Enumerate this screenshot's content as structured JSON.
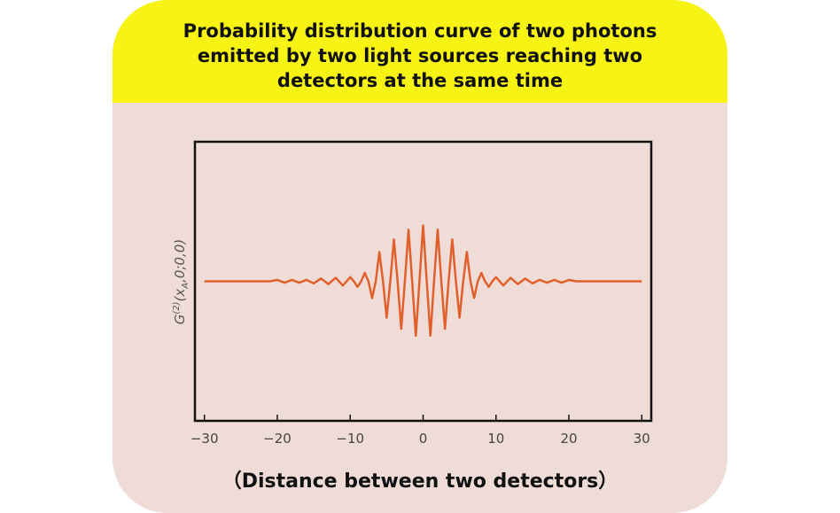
{
  "chart_data": {
    "type": "line",
    "title": "Probability distribution curve of two photons emitted by two light sources reaching two detectors at the same time",
    "y_label_parts": [
      "G",
      "(2)",
      "(x",
      "A",
      ",0;0,0)"
    ],
    "x_label": "（Distance between two detectors）",
    "x": [
      -30,
      -29,
      -28,
      -27,
      -26,
      -25,
      -24,
      -23,
      -22,
      -21,
      -20,
      -19,
      -18,
      -17,
      -16,
      -15,
      -14,
      -13,
      -12,
      -11,
      -10,
      -9.5,
      -9,
      -8.5,
      -8,
      -7.5,
      -7,
      -6.5,
      -6,
      -5.5,
      -5,
      -4.5,
      -4,
      -3.5,
      -3,
      -2.5,
      -2,
      -1.5,
      -1,
      -0.5,
      0,
      0.5,
      1,
      1.5,
      2,
      2.5,
      3,
      3.5,
      4,
      4.5,
      5,
      5.5,
      6,
      6.5,
      7,
      7.5,
      8,
      8.5,
      9,
      9.5,
      10,
      11,
      12,
      13,
      14,
      15,
      16,
      17,
      18,
      19,
      20,
      21,
      22,
      23,
      24,
      25,
      26,
      27,
      28,
      29,
      30
    ],
    "series": [
      {
        "color": "#e0602c",
        "values": [
          0,
          0,
          0,
          0,
          0,
          0,
          0,
          0,
          0,
          0,
          0.01,
          -0.01,
          0.01,
          -0.01,
          0.01,
          -0.015,
          0.02,
          -0.02,
          0.025,
          -0.03,
          0.03,
          0,
          -0.04,
          0,
          0.06,
          0,
          -0.12,
          0,
          0.21,
          0,
          -0.26,
          0,
          0.3,
          0,
          -0.34,
          0,
          0.37,
          0,
          -0.39,
          0,
          0.4,
          0,
          -0.39,
          0,
          0.37,
          0,
          -0.34,
          0,
          0.3,
          0,
          -0.26,
          0,
          0.21,
          0,
          -0.12,
          0,
          0.06,
          0,
          -0.04,
          0,
          0.03,
          -0.03,
          0.025,
          -0.02,
          0.02,
          -0.015,
          0.01,
          -0.01,
          0.01,
          -0.01,
          0.01,
          0,
          0,
          0,
          0,
          0,
          0,
          0,
          0,
          0,
          0
        ]
      }
    ],
    "xlim": [
      -31.3,
      31.3
    ],
    "ylim": [
      -1,
      1
    ],
    "xticks": [
      {
        "value": -30,
        "label": "−30"
      },
      {
        "value": -20,
        "label": "−20"
      },
      {
        "value": -10,
        "label": "−10"
      },
      0,
      10,
      20,
      30
    ]
  }
}
